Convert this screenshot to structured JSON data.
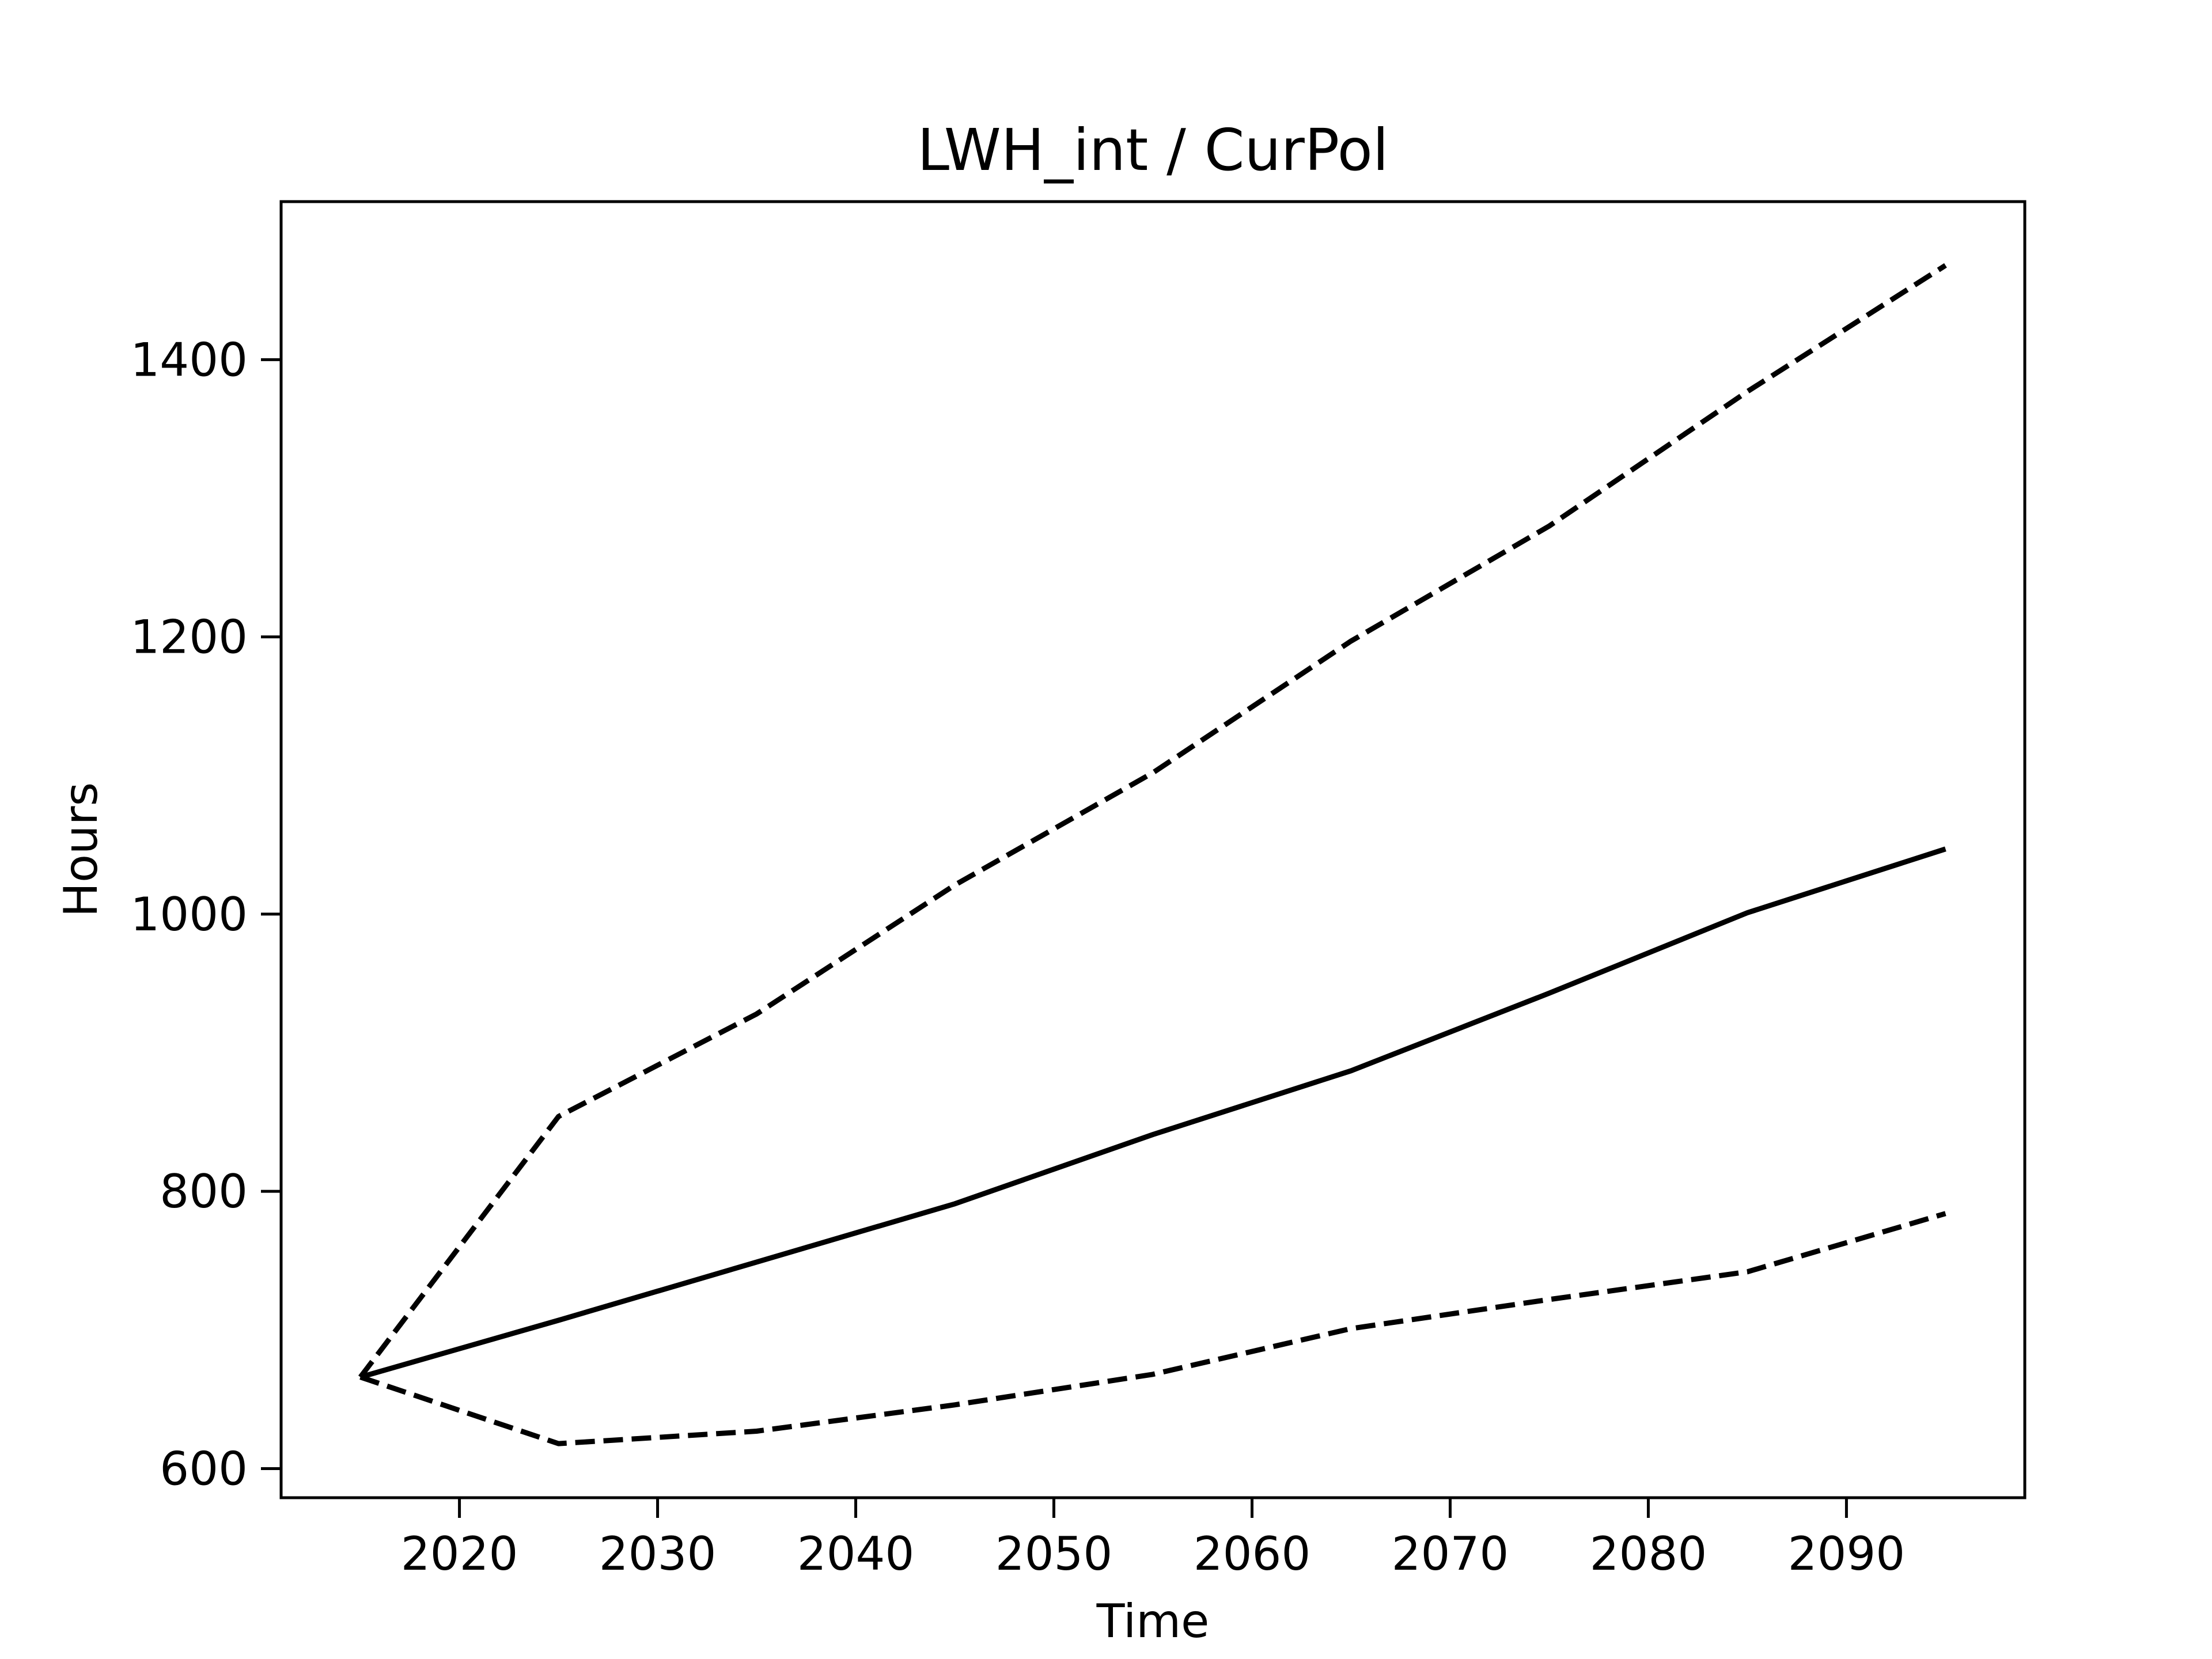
{
  "chart_data": {
    "type": "line",
    "title": "LWH_int / CurPol",
    "xlabel": "Time",
    "ylabel": "Hours",
    "xlim": [
      2011,
      2099
    ],
    "ylim": [
      579,
      1514
    ],
    "xticks": [
      2020,
      2030,
      2040,
      2050,
      2060,
      2070,
      2080,
      2090
    ],
    "yticks": [
      600,
      800,
      1000,
      1200,
      1400
    ],
    "grid": false,
    "legend": "none",
    "x": [
      2015,
      2025,
      2035,
      2045,
      2055,
      2065,
      2075,
      2085,
      2095
    ],
    "series": [
      {
        "style": "solid",
        "color": "#000000",
        "values": [
          666,
          707,
          749,
          791,
          841,
          887,
          943,
          1001,
          1047
        ]
      },
      {
        "style": "dashed",
        "color": "#000000",
        "values": [
          666,
          854,
          928,
          1021,
          1102,
          1197,
          1280,
          1377,
          1468
        ]
      },
      {
        "style": "dashed",
        "color": "#000000",
        "values": [
          666,
          618,
          627,
          646,
          668,
          701,
          722,
          742,
          784
        ]
      }
    ]
  }
}
